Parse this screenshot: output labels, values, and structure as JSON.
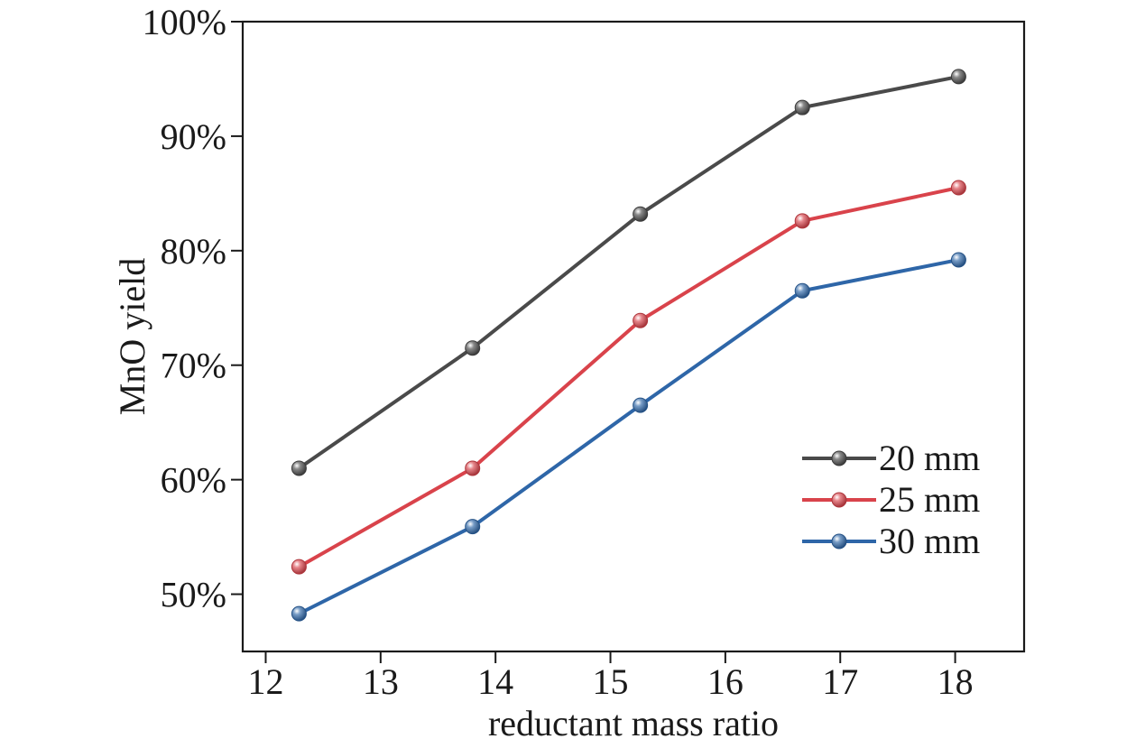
{
  "chart_data": {
    "type": "line",
    "title": "",
    "xlabel": "reductant mass ratio",
    "ylabel": "MnO yield",
    "xlim": [
      11.8,
      18.6
    ],
    "ylim": [
      45,
      100
    ],
    "xticks": [
      12,
      13,
      14,
      15,
      16,
      17,
      18
    ],
    "xtick_labels": [
      "12",
      "13",
      "14",
      "15",
      "16",
      "17",
      "18"
    ],
    "yticks": [
      50,
      60,
      70,
      80,
      90,
      100
    ],
    "ytick_labels": [
      "50%",
      "60%",
      "70%",
      "80%",
      "90%",
      "100%"
    ],
    "grid": false,
    "legend": "lower-right",
    "x": [
      12.29,
      13.8,
      15.26,
      16.67,
      18.03
    ],
    "series": [
      {
        "name": "20 mm",
        "color": "#4a4a4a",
        "values": [
          61.0,
          71.5,
          83.2,
          92.5,
          95.2
        ]
      },
      {
        "name": "25 mm",
        "color": "#d9434b",
        "values": [
          52.4,
          61.0,
          73.9,
          82.6,
          85.5
        ]
      },
      {
        "name": "30 mm",
        "color": "#2e66a8",
        "values": [
          48.3,
          55.9,
          66.5,
          76.5,
          79.2
        ]
      }
    ]
  }
}
